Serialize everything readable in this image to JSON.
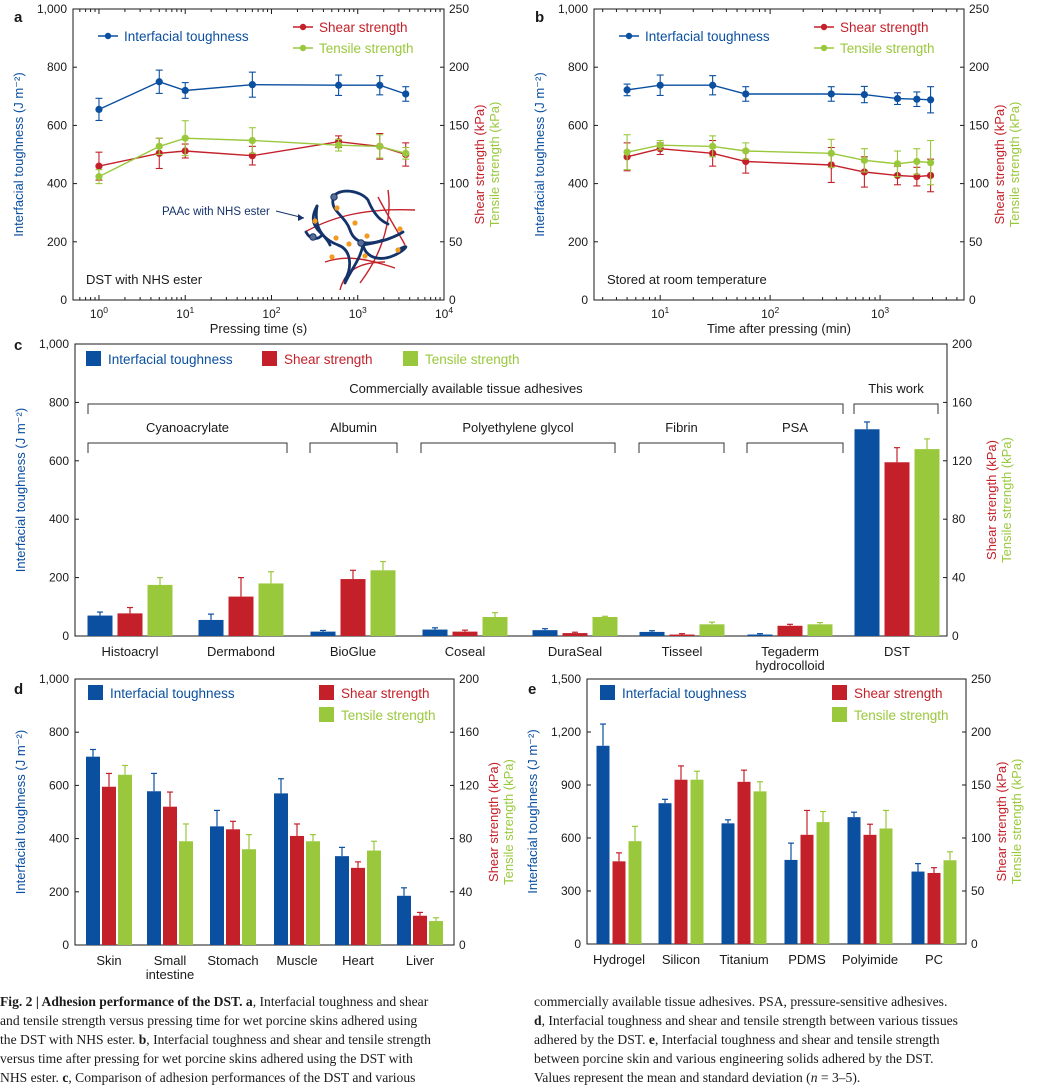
{
  "colors": {
    "toughness": "#0a4fa0",
    "shear": "#c4202a",
    "tensile": "#9ac83c",
    "axis": "#1a1a1a",
    "schematic_blue": "#14336b",
    "schematic_orange": "#f39a21"
  },
  "chart_data": [
    {
      "panel": "a",
      "type": "line",
      "xscale": "log",
      "xlabel": "Pressing time (s)",
      "ylabel_left": "Interfacial toughness (J m⁻²)",
      "ylabel_right_1": "Shear strength (kPa)",
      "ylabel_right_2": "Tensile strength (kPa)",
      "xlim": [
        0.5,
        10000
      ],
      "ylim_left": [
        0,
        1000
      ],
      "ylim_right": [
        0,
        250
      ],
      "yticks_left": [
        "0",
        "200",
        "400",
        "600",
        "800",
        "1,000"
      ],
      "yticks_right": [
        "0",
        "50",
        "100",
        "150",
        "200",
        "250"
      ],
      "xticks": [
        {
          "base": "10",
          "exp": "0"
        },
        {
          "base": "10",
          "exp": "1"
        },
        {
          "base": "10",
          "exp": "2"
        },
        {
          "base": "10",
          "exp": "3"
        },
        {
          "base": "10",
          "exp": "4"
        }
      ],
      "annotation": "DST with NHS ester",
      "inset_label": "PAAc with NHS ester",
      "legend": [
        "Interfacial toughness",
        "Shear strength",
        "Tensile strength"
      ],
      "x": [
        1,
        5,
        10,
        60,
        600,
        1800,
        3600
      ],
      "series": [
        {
          "name": "Interfacial toughness",
          "axis": "left",
          "values": [
            655,
            750,
            720,
            740,
            738,
            738,
            708
          ],
          "errors": [
            38,
            40,
            27,
            43,
            35,
            33,
            25
          ]
        },
        {
          "name": "Shear strength",
          "axis": "right",
          "values": [
            115,
            126,
            128,
            124,
            136,
            132,
            125
          ],
          "errors": [
            12,
            13,
            6,
            8,
            5,
            11,
            10
          ]
        },
        {
          "name": "Tensile strength",
          "axis": "right",
          "values": [
            106,
            132,
            139,
            137,
            133,
            132,
            126
          ],
          "errors": [
            6,
            7,
            15,
            11,
            5,
            10,
            5
          ]
        }
      ]
    },
    {
      "panel": "b",
      "type": "line",
      "xscale": "log",
      "xlabel": "Time after pressing (min)",
      "ylabel_left": "Interfacial toughness (J m⁻²)",
      "ylabel_right_1": "Shear strength (kPa)",
      "ylabel_right_2": "Tensile strength (kPa)",
      "xlim": [
        2.5,
        5800
      ],
      "ylim_left": [
        0,
        1000
      ],
      "ylim_right": [
        0,
        250
      ],
      "yticks_left": [
        "0",
        "200",
        "400",
        "600",
        "800",
        "1,000"
      ],
      "yticks_right": [
        "0",
        "50",
        "100",
        "150",
        "200",
        "250"
      ],
      "xticks": [
        {
          "base": "10",
          "exp": "1"
        },
        {
          "base": "10",
          "exp": "2"
        },
        {
          "base": "10",
          "exp": "3"
        }
      ],
      "annotation": "Stored at room temperature",
      "legend": [
        "Interfacial toughness",
        "Shear strength",
        "Tensile strength"
      ],
      "x": [
        5,
        10,
        30,
        60,
        360,
        720,
        1440,
        2160,
        2880
      ],
      "series": [
        {
          "name": "Interfacial toughness",
          "axis": "left",
          "values": [
            722,
            738,
            738,
            708,
            708,
            706,
            692,
            690,
            688
          ],
          "errors": [
            20,
            35,
            33,
            25,
            25,
            28,
            20,
            25,
            45
          ]
        },
        {
          "name": "Shear strength",
          "axis": "right",
          "values": [
            123,
            130,
            126,
            119,
            116,
            110,
            107,
            106,
            107
          ],
          "errors": [
            12,
            5,
            11,
            10,
            15,
            13,
            8,
            8,
            14
          ]
        },
        {
          "name": "Tensile strength",
          "axis": "right",
          "values": [
            127,
            133,
            132,
            128,
            126,
            120,
            117,
            119,
            118
          ],
          "errors": [
            15,
            4,
            9,
            7,
            12,
            10,
            11,
            11,
            19
          ]
        }
      ]
    },
    {
      "panel": "c",
      "type": "bar",
      "ylabel_left": "Interfacial toughness (J m⁻²)",
      "ylabel_right_1": "Shear strength (kPa)",
      "ylabel_right_2": "Tensile strength (kPa)",
      "ylim_left": [
        0,
        1000
      ],
      "ylim_right": [
        0,
        200
      ],
      "yticks_left": [
        "0",
        "200",
        "400",
        "600",
        "800",
        "1,000"
      ],
      "yticks_right": [
        "0",
        "40",
        "80",
        "120",
        "160",
        "200"
      ],
      "legend": [
        "Interfacial toughness",
        "Shear strength",
        "Tensile strength"
      ],
      "categories": [
        "Histoacryl",
        "Dermabond",
        "BioGlue",
        "Coseal",
        "DuraSeal",
        "Tisseel",
        "Tegaderm\nhydrocolloid",
        "DST"
      ],
      "category_lines": [
        [
          "Histoacryl"
        ],
        [
          "Dermabond"
        ],
        [
          "BioGlue"
        ],
        [
          "Coseal"
        ],
        [
          "DuraSeal"
        ],
        [
          "Tisseel"
        ],
        [
          "Tegaderm",
          "hydrocolloid"
        ],
        [
          "DST"
        ]
      ],
      "groups": [
        {
          "label": "Commercially available tissue adhesives",
          "from": 0,
          "to": 6,
          "level": 1
        },
        {
          "label": "Cyanoacrylate",
          "from": 0,
          "to": 1,
          "level": 2
        },
        {
          "label": "Albumin",
          "from": 2,
          "to": 2,
          "level": 2
        },
        {
          "label": "Polyethylene glycol",
          "from": 3,
          "to": 4,
          "level": 2
        },
        {
          "label": "Fibrin",
          "from": 5,
          "to": 5,
          "level": 2
        },
        {
          "label": "PSA",
          "from": 6,
          "to": 6,
          "level": 2
        },
        {
          "label": "This work",
          "from": 7,
          "to": 7,
          "level": 1
        }
      ],
      "series": [
        {
          "name": "Interfacial toughness",
          "axis": "left",
          "values": [
            70,
            55,
            15,
            22,
            20,
            14,
            5,
            708
          ],
          "errors": [
            12,
            20,
            4,
            6,
            5,
            4,
            3,
            25
          ]
        },
        {
          "name": "Shear strength",
          "axis": "right",
          "values": [
            15.5,
            27,
            39,
            3,
            2,
            1,
            7,
            119
          ],
          "errors": [
            4,
            13,
            6,
            1,
            0.6,
            0.6,
            1,
            10
          ]
        },
        {
          "name": "Tensile strength",
          "axis": "right",
          "values": [
            35,
            36,
            45,
            13,
            13,
            8,
            8,
            128
          ],
          "errors": [
            5,
            8,
            6,
            3,
            0.5,
            1.5,
            1.2,
            7
          ]
        }
      ]
    },
    {
      "panel": "d",
      "type": "bar",
      "ylabel_left": "Interfacial toughness (J m⁻²)",
      "ylabel_right_1": "Shear strength (kPa)",
      "ylabel_right_2": "Tensile strength (kPa)",
      "ylim_left": [
        0,
        1000
      ],
      "ylim_right": [
        0,
        200
      ],
      "yticks_left": [
        "0",
        "200",
        "400",
        "600",
        "800",
        "1,000"
      ],
      "yticks_right": [
        "0",
        "40",
        "80",
        "120",
        "160",
        "200"
      ],
      "legend": [
        "Interfacial toughness",
        "Shear strength",
        "Tensile strength"
      ],
      "categories": [
        "Skin",
        "Small\nintestine",
        "Stomach",
        "Muscle",
        "Heart",
        "Liver"
      ],
      "category_lines": [
        [
          "Skin"
        ],
        [
          "Small",
          "intestine"
        ],
        [
          "Stomach"
        ],
        [
          "Muscle"
        ],
        [
          "Heart"
        ],
        [
          "Liver"
        ]
      ],
      "series": [
        {
          "name": "Interfacial toughness",
          "axis": "left",
          "values": [
            708,
            578,
            446,
            570,
            334,
            185
          ],
          "errors": [
            27,
            67,
            60,
            55,
            33,
            30
          ]
        },
        {
          "name": "Shear strength",
          "axis": "right",
          "values": [
            119,
            104,
            87,
            82,
            58,
            22
          ],
          "errors": [
            10,
            11,
            6,
            9,
            4.5,
            2.5
          ]
        },
        {
          "name": "Tensile strength",
          "axis": "right",
          "values": [
            128,
            78,
            72,
            78,
            71,
            18
          ],
          "errors": [
            7,
            13,
            11,
            5,
            7,
            2.5
          ]
        }
      ]
    },
    {
      "panel": "e",
      "type": "bar",
      "ylabel_left": "Interfacial toughness (J m⁻²)",
      "ylabel_right_1": "Shear strength (kPa)",
      "ylabel_right_2": "Tensile strength (kPa)",
      "ylim_left": [
        0,
        1500
      ],
      "ylim_right": [
        0,
        250
      ],
      "yticks_left": [
        "0",
        "300",
        "600",
        "900",
        "1,200",
        "1,500"
      ],
      "yticks_right": [
        "0",
        "50",
        "100",
        "150",
        "200",
        "250"
      ],
      "legend": [
        "Interfacial toughness",
        "Shear strength",
        "Tensile strength"
      ],
      "categories": [
        "Hydrogel",
        "Silicon",
        "Titanium",
        "PDMS",
        "Polyimide",
        "PC"
      ],
      "category_lines": [
        [
          "Hydrogel"
        ],
        [
          "Silicon"
        ],
        [
          "Titanium"
        ],
        [
          "PDMS"
        ],
        [
          "Polyimide"
        ],
        [
          "PC"
        ]
      ],
      "series": [
        {
          "name": "Interfacial toughness",
          "axis": "left",
          "values": [
            1122,
            797,
            683,
            476,
            718,
            410
          ],
          "errors": [
            123,
            22,
            20,
            95,
            28,
            45
          ]
        },
        {
          "name": "Shear strength",
          "axis": "right",
          "values": [
            78,
            155,
            153,
            103,
            103,
            67
          ],
          "errors": [
            8,
            13,
            11,
            23,
            10,
            5
          ]
        },
        {
          "name": "Tensile strength",
          "axis": "right",
          "values": [
            97,
            155,
            144,
            115,
            109,
            79
          ],
          "errors": [
            14,
            8,
            9,
            10,
            17,
            8
          ]
        }
      ]
    }
  ],
  "caption": {
    "left_lines": [
      {
        "parts": [
          {
            "b": true,
            "t": "Fig. 2 | Adhesion performance of the DST. a"
          },
          {
            "b": false,
            "t": ", Interfacial toughness and shear"
          }
        ]
      },
      {
        "parts": [
          {
            "b": false,
            "t": "and tensile strength versus pressing time for wet porcine skins adhered using"
          }
        ]
      },
      {
        "parts": [
          {
            "b": false,
            "t": "the DST with NHS ester. "
          },
          {
            "b": true,
            "t": "b"
          },
          {
            "b": false,
            "t": ", Interfacial toughness and shear and tensile strength"
          }
        ]
      },
      {
        "parts": [
          {
            "b": false,
            "t": "versus time after pressing for wet porcine skins adhered using the DST with"
          }
        ]
      },
      {
        "parts": [
          {
            "b": false,
            "t": "NHS ester. "
          },
          {
            "b": true,
            "t": "c"
          },
          {
            "b": false,
            "t": ", Comparison of adhesion performances of the DST and various"
          }
        ]
      }
    ],
    "right_lines": [
      {
        "parts": [
          {
            "b": false,
            "t": "commercially available tissue adhesives. PSA, pressure-sensitive adhesives."
          }
        ]
      },
      {
        "parts": [
          {
            "b": true,
            "t": "d"
          },
          {
            "b": false,
            "t": ", Interfacial toughness and shear and tensile strength between various tissues"
          }
        ]
      },
      {
        "parts": [
          {
            "b": false,
            "t": "adhered by the DST. "
          },
          {
            "b": true,
            "t": "e"
          },
          {
            "b": false,
            "t": ", Interfacial toughness and shear and tensile strength"
          }
        ]
      },
      {
        "parts": [
          {
            "b": false,
            "t": "between porcine skin and various engineering solids adhered by the DST."
          }
        ]
      },
      {
        "parts": [
          {
            "b": false,
            "t": "Values represent the mean and standard deviation ("
          },
          {
            "b": false,
            "i": true,
            "t": "n"
          },
          {
            "b": false,
            "t": " = 3–5)."
          }
        ]
      }
    ]
  }
}
